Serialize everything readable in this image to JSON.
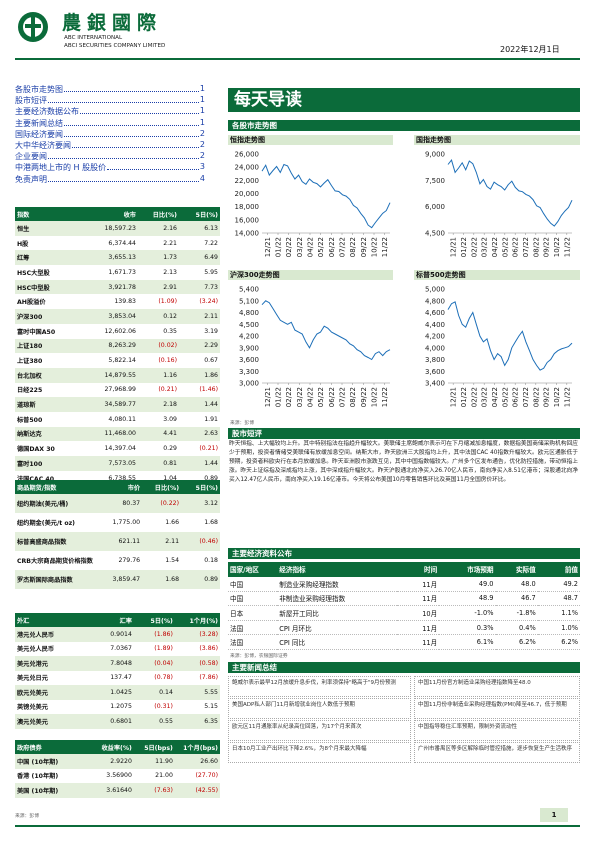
{
  "header": {
    "brand_cn": "農銀國際",
    "brand_en1": "ABC INTERNATIONAL",
    "brand_en2": "ABCI SECURITIES COMPANY LIMITED",
    "date": "2022年12月1日"
  },
  "toc": [
    {
      "t": "各股市走势图",
      "p": "1"
    },
    {
      "t": "股市短评",
      "p": "1"
    },
    {
      "t": "主要经济数据公布",
      "p": "1"
    },
    {
      "t": "主要新闻总结",
      "p": "1"
    },
    {
      "t": "国际经济要闻",
      "p": "2"
    },
    {
      "t": "大中华经济要闻",
      "p": "2"
    },
    {
      "t": "企业要闻",
      "p": "2"
    },
    {
      "t": "中港两地上市的 H 股股价",
      "p": "3"
    },
    {
      "t": "免责声明",
      "p": "4"
    }
  ],
  "indices": {
    "headers": [
      "指数",
      "收市",
      "日比(%)",
      "5日(%)"
    ],
    "rows": [
      [
        "恒生",
        "18,597.23",
        "2.16",
        "6.13"
      ],
      [
        "H股",
        "6,374.44",
        "2.21",
        "7.22"
      ],
      [
        "红筹",
        "3,655.13",
        "1.73",
        "6.49"
      ],
      [
        "HSC大型股",
        "1,671.73",
        "2.13",
        "5.95"
      ],
      [
        "HSC中型股",
        "3,921.78",
        "2.91",
        "7.73"
      ],
      [
        "AH股溢价",
        "139.83",
        "(1.09)",
        "(3.24)"
      ],
      [
        "沪深300",
        "3,853.04",
        "0.12",
        "2.11"
      ],
      [
        "富时中国A50",
        "12,602.06",
        "0.35",
        "3.19"
      ],
      [
        "上证180",
        "8,263.29",
        "(0.02)",
        "2.29"
      ],
      [
        "上证380",
        "5,822.14",
        "(0.16)",
        "0.67"
      ],
      [
        "台北加权",
        "14,879.55",
        "1.16",
        "1.86"
      ],
      [
        "日经225",
        "27,968.99",
        "(0.21)",
        "(1.46)"
      ],
      [
        "道琼斯",
        "34,589.77",
        "2.18",
        "1.44"
      ],
      [
        "标普500",
        "4,080.11",
        "3.09",
        "1.91"
      ],
      [
        "纳斯达克",
        "11,468.00",
        "4.41",
        "2.63"
      ],
      [
        "德国DAX 30",
        "14,397.04",
        "0.29",
        "(0.21)"
      ],
      [
        "富时100",
        "7,573.05",
        "0.81",
        "1.44"
      ],
      [
        "法国CAC 40",
        "6,738.55",
        "1.04",
        "0.89"
      ]
    ]
  },
  "commodities": {
    "headers": [
      "商品期货/指数",
      "市价",
      "日比(%)",
      "5日(%)"
    ],
    "rows": [
      [
        "纽约期油(美元/桶)",
        "80.37",
        "(0.22)",
        "3.12"
      ],
      [
        "纽约期金(美元/t oz)",
        "1,775.00",
        "1.66",
        "1.68"
      ],
      [
        "标普高盛商品指数",
        "621.11",
        "2.11",
        "(0.46)"
      ],
      [
        "CRB大宗商品期货价格指数",
        "279.76",
        "1.54",
        "0.18"
      ],
      [
        "罗杰斯国际商品指数",
        "3,859.47",
        "1.68",
        "0.89"
      ]
    ]
  },
  "fx": {
    "headers": [
      "外汇",
      "汇率",
      "5日(%)",
      "1个月(%)"
    ],
    "rows": [
      [
        "港元兑人民币",
        "0.9014",
        "(1.86)",
        "(3.28)"
      ],
      [
        "美元兑人民币",
        "7.0367",
        "(1.89)",
        "(3.86)"
      ],
      [
        "美元兑港元",
        "7.8048",
        "(0.04)",
        "(0.58)"
      ],
      [
        "美元兑日元",
        "137.47",
        "(0.78)",
        "(7.86)"
      ],
      [
        "欧元兑美元",
        "1.0425",
        "0.14",
        "5.55"
      ],
      [
        "英镑兑美元",
        "1.2075",
        "(0.31)",
        "5.15"
      ],
      [
        "澳元兑美元",
        "0.6801",
        "0.55",
        "6.35"
      ]
    ]
  },
  "bonds": {
    "headers": [
      "政府债券",
      "收益率(%)",
      "5日(bps)",
      "1个月(bps)"
    ],
    "rows": [
      [
        "中国 (10年期)",
        "2.9220",
        "11.90",
        "26.60"
      ],
      [
        "香港 (10年期)",
        "3.56900",
        "21.00",
        "(27.70)"
      ],
      [
        "美国 (10年期)",
        "3.61640",
        "(7.63)",
        "(42.55)"
      ]
    ]
  },
  "source_small": "来源：彭博",
  "banner": "每天导读",
  "charts_section": "各股市走势图",
  "charts": [
    {
      "title": "恒指走势图",
      "yticks": [
        "26,000",
        "24,000",
        "22,000",
        "20,000",
        "18,000",
        "16,000",
        "14,000"
      ],
      "ylim": [
        14000,
        26000
      ],
      "values": [
        23400,
        24300,
        22800,
        23500,
        24100,
        23200,
        24400,
        24200,
        23100,
        22200,
        22800,
        21800,
        21400,
        22200,
        21700,
        21500,
        21000,
        21600,
        22100,
        21200,
        20400,
        20300,
        19800,
        19600,
        19100,
        18200,
        17800,
        17000,
        16300,
        15200,
        14800,
        15600,
        16300,
        17000,
        17400,
        18600
      ]
    },
    {
      "title": "国指走势图",
      "yticks": [
        "9,000",
        "7,500",
        "6,000",
        "4,500"
      ],
      "ylim": [
        4500,
        9000
      ],
      "values": [
        8400,
        8650,
        7950,
        8200,
        8500,
        8100,
        8600,
        8450,
        7950,
        7300,
        7550,
        7150,
        7000,
        7400,
        7250,
        7150,
        6950,
        7250,
        7450,
        7100,
        6900,
        6850,
        6700,
        6600,
        6400,
        6050,
        5950,
        5600,
        5300,
        5050,
        4900,
        5150,
        5500,
        5750,
        5950,
        6370
      ]
    },
    {
      "title": "沪深300走势图",
      "yticks": [
        "5,400",
        "5,100",
        "4,800",
        "4,500",
        "4,200",
        "3,900",
        "3,600",
        "3,300",
        "3,000"
      ],
      "ylim": [
        3000,
        5400
      ],
      "values": [
        5000,
        5100,
        5050,
        4900,
        4750,
        4600,
        4550,
        4500,
        4550,
        4350,
        4300,
        4250,
        4050,
        3900,
        4100,
        4250,
        4300,
        4450,
        4400,
        4300,
        4250,
        4200,
        4150,
        4100,
        4000,
        3950,
        3850,
        3800,
        3700,
        3650,
        3600,
        3750,
        3800,
        3700,
        3800,
        3850
      ]
    },
    {
      "title": "标普500走势图",
      "yticks": [
        "5,000",
        "4,800",
        "4,600",
        "4,400",
        "4,200",
        "4,000",
        "3,800",
        "3,600",
        "3,400"
      ],
      "ylim": [
        3400,
        5000
      ],
      "values": [
        4650,
        4750,
        4780,
        4550,
        4400,
        4350,
        4500,
        4600,
        4400,
        4200,
        4100,
        4150,
        3950,
        3800,
        3900,
        3850,
        3700,
        3800,
        4000,
        4100,
        4200,
        4280,
        4100,
        3950,
        3800,
        3700,
        3620,
        3650,
        3750,
        3800,
        3900,
        3950,
        3980,
        4000,
        4020,
        4080
      ]
    }
  ],
  "xticks": [
    "12/21",
    "01/22",
    "02/22",
    "03/22",
    "04/22",
    "05/22",
    "06/22",
    "07/22",
    "08/22",
    "09/22",
    "10/22",
    "11/22"
  ],
  "chart_source": "来源：彭博",
  "commentary_title": "股市短评",
  "commentary": "昨天恒指、上大幅较均上升。其中特别指法在指趋升幅较大。美联储主席鲍威尔表示可在下月缩减加息幅度，数据指美国商储采购机构回应少于预期，投资者情绪受美联储有放缓加息空间。纳斯大市，昨天欧洲三大股指均上升，其中法国CAC 40指数升幅较大。欧元区通胀低于预期，投资者料欧央行在本月放缓加息。昨天亚洲股市涨跌互见，其中中国指数幅较大。广州多个区发布通告，优化防控措施，带动恒指上涨。昨天上证综指及深成指均上涨，其中深成指升幅较大。昨天沪股通北向净买入26.70亿人民币，南向净买入8.51亿港币；深股通北向净买入12.47亿人民币，南向净买入19.16亿港币。今天将公布美国10月零售销售环比及英国11月全国房价环比。",
  "eco_title": "主要经济资料公布",
  "eco": {
    "headers": [
      "国家/地区",
      "经济指标",
      "时间",
      "市场预期",
      "实际值",
      "前值"
    ],
    "rows": [
      [
        "中国",
        "制造业采购经理指数",
        "11月",
        "49.0",
        "48.0",
        "49.2"
      ],
      [
        "中国",
        "非制造业采购经理指数",
        "11月",
        "48.9",
        "46.7",
        "48.7"
      ],
      [
        "日本",
        "新屋开工同比",
        "10月",
        "-1.0%",
        "-1.8%",
        "1.1%"
      ],
      [
        "法国",
        "CPI 月环比",
        "11月",
        "0.3%",
        "0.4%",
        "1.0%"
      ],
      [
        "法国",
        "CPI 同比",
        "11月",
        "6.1%",
        "6.2%",
        "6.2%"
      ]
    ]
  },
  "eco_source": "来源：彭博，农银国际证券",
  "news_title": "主要新闻总结",
  "news": [
    [
      "鲍威尔表示最早12月放缓升息步伐，利率须保持\"略高于\"9月份预测",
      "中国11月份官方制造业采购经理指数降至48.0"
    ],
    [
      "美国ADP私人部门11月新增就业岗位人数低于预期",
      "中国11月份非制造业采购经理指数(PMI)降至46.7，低于预期"
    ],
    [
      "欧元区11月通胀率从纪录高位回落，为17个月来首次",
      "中国指导稳住汇率预期，限制外资流动性"
    ],
    [
      "日本10月工业产出环比下降2.6%，为8个月来最大降幅",
      "广州市番禺区等多区解除临时管控措施，逐步恢复生产生活秩序"
    ]
  ],
  "page": "1"
}
